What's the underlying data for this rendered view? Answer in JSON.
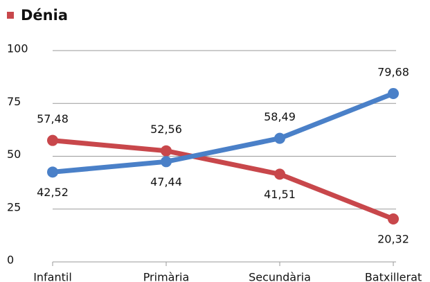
{
  "chart_data": {
    "type": "line",
    "title": "Dénia",
    "categories": [
      "Infantil",
      "Primària",
      "Secundària",
      "Batxillerat"
    ],
    "series": [
      {
        "color": "#c8474b",
        "values": [
          57.48,
          52.56,
          41.51,
          20.32
        ],
        "value_labels": [
          "57,48",
          "52,56",
          "41,51",
          "20,32"
        ]
      },
      {
        "color": "#4a80c8",
        "values": [
          42.52,
          47.44,
          58.49,
          79.68
        ],
        "value_labels": [
          "42,52",
          "47,44",
          "58,49",
          "79,68"
        ]
      }
    ],
    "ylim": [
      0,
      100
    ],
    "yticks": [
      0,
      25,
      50,
      75,
      100
    ],
    "grid": true
  }
}
